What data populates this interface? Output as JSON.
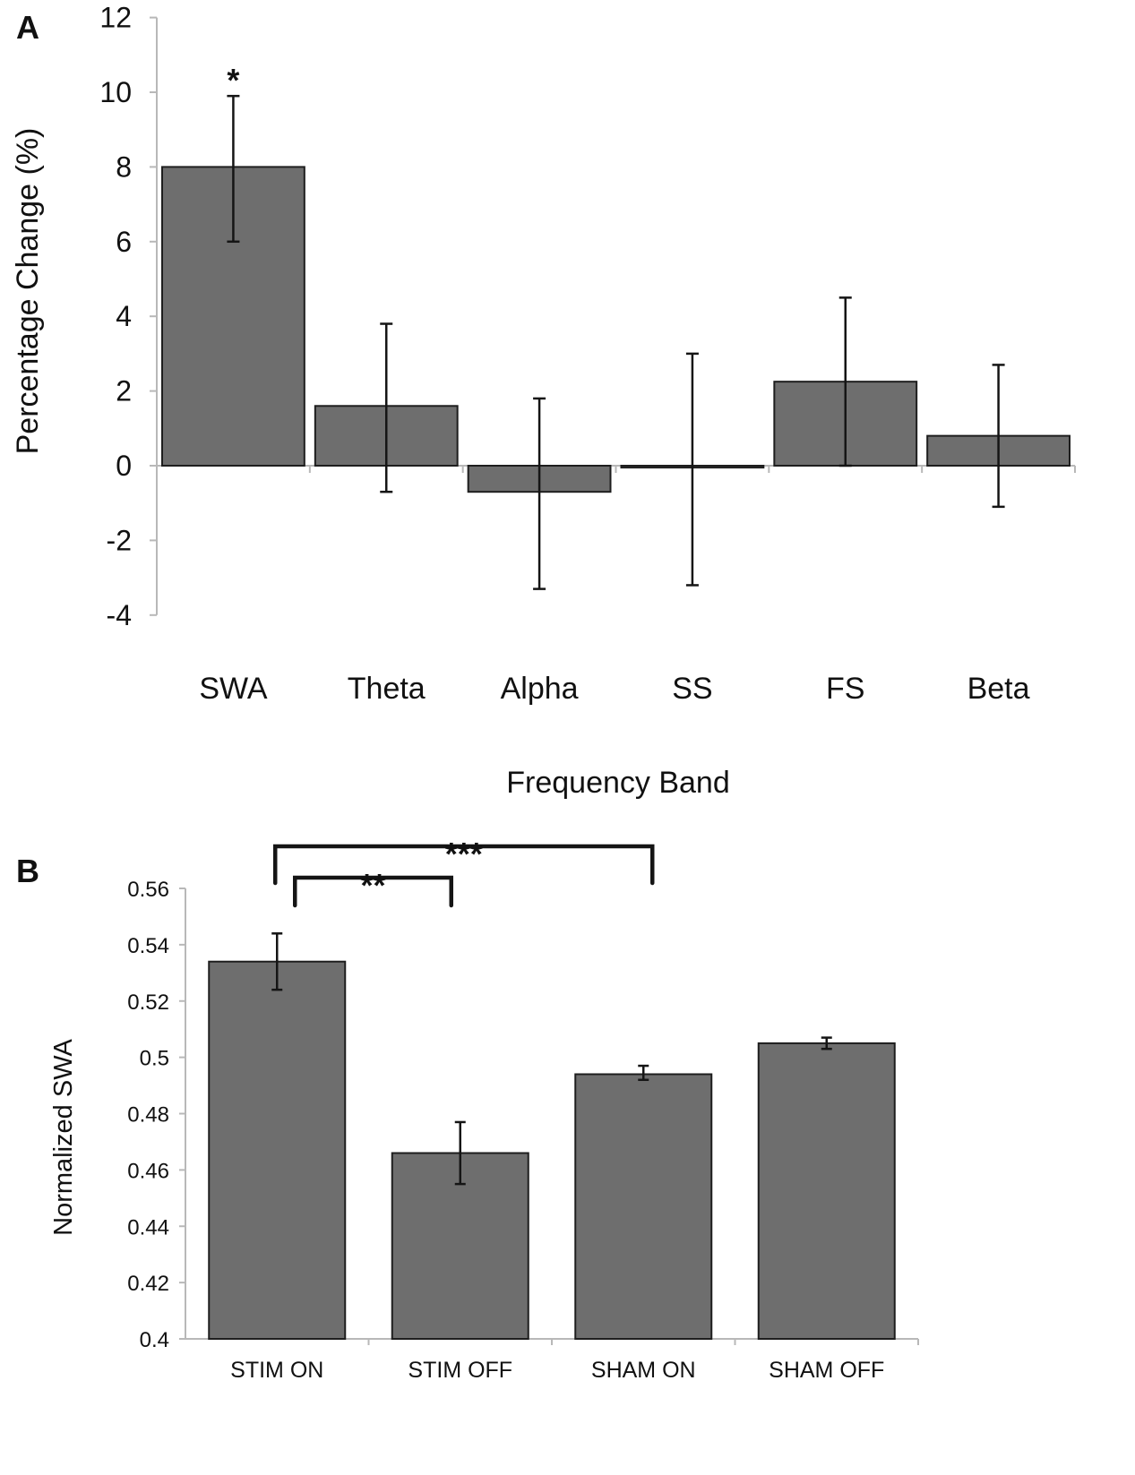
{
  "chart_data": [
    {
      "panel": "A",
      "type": "bar",
      "title": "",
      "xlabel": "Frequency Band",
      "ylabel": "Percentage Change (%)",
      "ylim": [
        -4,
        12
      ],
      "yticks": [
        12,
        10,
        8,
        6,
        4,
        2,
        0,
        -2,
        -4
      ],
      "categories": [
        "SWA",
        "Theta",
        "Alpha",
        "SS",
        "FS",
        "Beta"
      ],
      "values": [
        8.0,
        1.6,
        -0.7,
        -0.05,
        2.25,
        0.8
      ],
      "error_low": [
        6.0,
        -0.7,
        -3.3,
        -3.2,
        0.0,
        -1.1
      ],
      "error_high": [
        9.9,
        3.8,
        1.8,
        3.0,
        4.5,
        2.7
      ],
      "annotations": [
        {
          "category": "SWA",
          "text": "*"
        }
      ],
      "grid": false
    },
    {
      "panel": "B",
      "type": "bar",
      "title": "",
      "xlabel": "",
      "ylabel": "Normalized SWA",
      "ylim": [
        0.4,
        0.56
      ],
      "yticks": [
        "0.56",
        "0.54",
        "0.52",
        "0.5",
        "0.48",
        "0.46",
        "0.44",
        "0.42",
        "0.4"
      ],
      "categories": [
        "STIM ON",
        "STIM OFF",
        "SHAM ON",
        "SHAM OFF"
      ],
      "values": [
        0.534,
        0.466,
        0.494,
        0.505
      ],
      "error_low": [
        0.524,
        0.455,
        0.492,
        0.503
      ],
      "error_high": [
        0.544,
        0.477,
        0.497,
        0.507
      ],
      "significance": [
        {
          "from": "STIM ON",
          "to": "STIM OFF",
          "text": "**"
        },
        {
          "from": "STIM ON",
          "to": "SHAM ON",
          "text": "***"
        }
      ],
      "grid": false
    }
  ]
}
